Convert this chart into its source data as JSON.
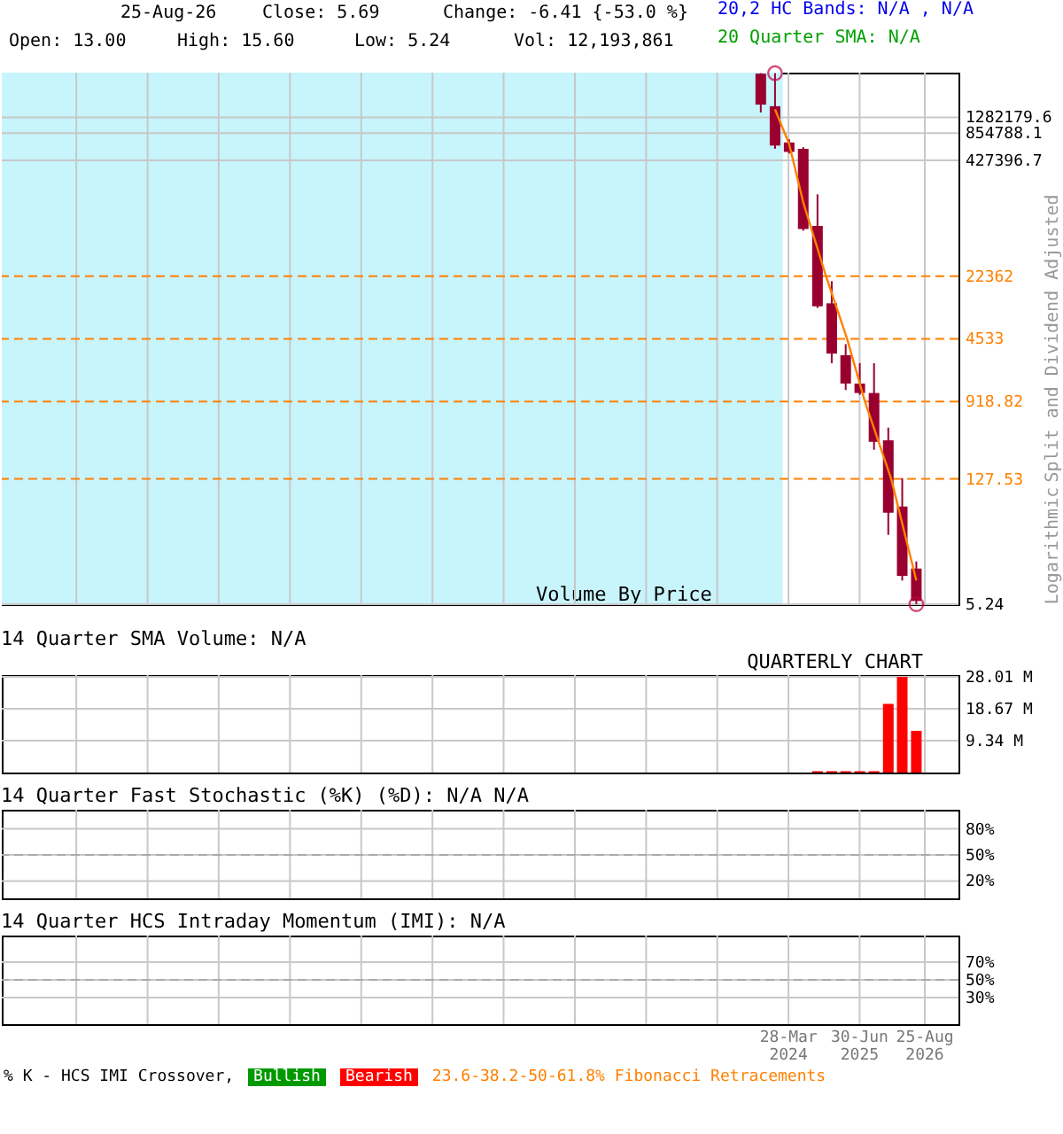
{
  "chart_data": [
    {
      "type": "candlestick",
      "annotations": [
        "25-Aug-26",
        "Close: 5.69",
        "Change: -6.41 {-53.0 %}",
        "20,2 HC Bands: N/A , N/A",
        "Open: 13.00",
        "High: 15.60",
        "Low: 5.24",
        "Vol: 12,193,861",
        "20 Quarter SMA: N/A",
        "Logarithmic"
      ],
      "ylabel": "Split and Dividend Adjusted",
      "color": "#99002f",
      "log": true,
      "grid": true,
      "tick_labels": "y",
      "x": [
        "2023-10-01",
        "2024-01-01",
        "2024-04-01",
        "2024-07-01",
        "2024-10-01",
        "2025-01-01",
        "2025-04-01",
        "2025-07-01",
        "2025-10-01",
        "2026-01-01",
        "2026-04-01",
        "2026-07-01"
      ],
      "ohlc": [
        [
          3900000,
          3950000,
          1450000,
          1770000
        ],
        [
          1700000,
          3950000,
          575000,
          624000
        ],
        [
          675000,
          732000,
          510000,
          531000
        ],
        [
          575000,
          599000,
          71300,
          74200
        ],
        [
          80400,
          180000,
          9960,
          10400
        ],
        [
          11200,
          19700,
          2440,
          3110
        ],
        [
          2990,
          3960,
          1230,
          1450
        ],
        [
          1450,
          2440,
          1090,
          1140
        ],
        [
          1140,
          2440,
          268,
          328
        ],
        [
          342,
          471,
          30.7,
          53.8
        ],
        [
          63.2,
          130,
          9.57,
          10.8
        ],
        [
          13.0,
          15.6,
          5.24,
          5.69
        ]
      ],
      "series": [
        {
          "type": "line",
          "color": "#ff8000",
          "x": [
            "2024-01-01",
            "2024-04-01",
            "2024-07-01",
            "2024-11-25",
            "2025-04-10",
            "2025-08-03",
            "2026-01-20",
            "2026-07-01"
          ],
          "values": [
            1570000,
            650000,
            147000,
            22362,
            4533,
            918.82,
            127.53,
            9.57
          ]
        },
        {
          "type": "scatter",
          "color": "#c00040",
          "marker": "circle",
          "x": [
            "2024-01-01",
            "2026-07-01"
          ],
          "values": [
            3950000,
            5.24
          ]
        }
      ],
      "ref_lines": [
        {
          "axis": "y",
          "value": 22362,
          "label": "22362",
          "color": "#ff8000",
          "line_style": "dashed"
        },
        {
          "axis": "y",
          "value": 4533,
          "label": "4533",
          "color": "#ff8000",
          "line_style": "dashed"
        },
        {
          "axis": "y",
          "value": 918.82,
          "label": "918.82",
          "color": "#ff8000",
          "line_style": "dashed"
        },
        {
          "axis": "y",
          "value": 127.53,
          "label": "127.53",
          "color": "#ff8000",
          "line_style": "dashed"
        }
      ],
      "bands": [
        {
          "axis": "x",
          "from": "2010-05-03",
          "to": "2024-02-20",
          "label": "Volume By Price",
          "color": "#c8f4fc"
        }
      ],
      "ylim": [
        5.24,
        4000000
      ],
      "yticks": [
        5.24,
        427396.7,
        854788.1,
        1282179.6
      ],
      "xlim": [
        "2010-05-03",
        "2027-03-30"
      ],
      "xticks": [
        {
          "value": "2011-08-27",
          "label": null
        },
        {
          "value": "2012-11-29",
          "label": null
        },
        {
          "value": "2014-03-03",
          "label": null
        },
        {
          "value": "2015-06-06",
          "label": null
        },
        {
          "value": "2016-09-08",
          "label": null
        },
        {
          "value": "2017-12-12",
          "label": null
        },
        {
          "value": "2019-03-16",
          "label": null
        },
        {
          "value": "2020-06-18",
          "label": null
        },
        {
          "value": "2021-09-21",
          "label": null
        },
        {
          "value": "2022-12-24",
          "label": null
        },
        {
          "value": "2024-03-28",
          "label": null
        },
        {
          "value": "2025-06-30",
          "label": null
        },
        {
          "value": "2026-08-25",
          "label": null
        }
      ]
    },
    {
      "type": "bar",
      "title": "14 Quarter SMA Volume: N/A",
      "annotations": [
        "QUARTERLY CHART"
      ],
      "color": "#ff0000",
      "grid": true,
      "tick_labels": "y",
      "x": [
        "2023-10-01",
        "2024-01-01",
        "2024-04-01",
        "2024-07-01",
        "2024-10-01",
        "2025-01-01",
        "2025-04-01",
        "2025-07-01",
        "2025-10-01",
        "2026-01-01",
        "2026-04-01",
        "2026-07-01"
      ],
      "values": [
        0,
        0,
        0,
        0,
        0.4,
        0.4,
        0.4,
        0.4,
        0.4,
        20.1,
        28.0,
        12.2
      ],
      "ylim": [
        0,
        28.5
      ],
      "yticks": [
        {
          "value": 9.34,
          "label": "9.34 M"
        },
        {
          "value": 18.67,
          "label": "18.67 M"
        },
        {
          "value": 28.01,
          "label": "28.01 M"
        }
      ],
      "xlim": [
        "2010-05-03",
        "2027-03-30"
      ],
      "xticks": [
        {
          "value": "2011-08-27",
          "label": null
        },
        {
          "value": "2012-11-29",
          "label": null
        },
        {
          "value": "2014-03-03",
          "label": null
        },
        {
          "value": "2015-06-06",
          "label": null
        },
        {
          "value": "2016-09-08",
          "label": null
        },
        {
          "value": "2017-12-12",
          "label": null
        },
        {
          "value": "2019-03-16",
          "label": null
        },
        {
          "value": "2020-06-18",
          "label": null
        },
        {
          "value": "2021-09-21",
          "label": null
        },
        {
          "value": "2022-12-24",
          "label": null
        },
        {
          "value": "2024-03-28",
          "label": null
        },
        {
          "value": "2025-06-30",
          "label": null
        },
        {
          "value": "2026-08-25",
          "label": null
        }
      ]
    },
    {
      "type": "line",
      "title": "14 Quarter Fast Stochastic (%K) (%D): N/A  N/A",
      "grid": true,
      "tick_labels": "y",
      "ref_lines": [
        {
          "axis": "y",
          "value": 50,
          "color": "#aaaaaa",
          "line_style": "dashed"
        }
      ],
      "ylim": [
        0,
        102
      ],
      "yticks": [
        {
          "value": 20,
          "label": "20%"
        },
        {
          "value": 50,
          "label": "50%"
        },
        {
          "value": 80,
          "label": "80%"
        }
      ],
      "xlim": [
        "2010-05-03",
        "2027-03-30"
      ],
      "xticks": [
        {
          "value": "2011-08-27",
          "label": null
        },
        {
          "value": "2012-11-29",
          "label": null
        },
        {
          "value": "2014-03-03",
          "label": null
        },
        {
          "value": "2015-06-06",
          "label": null
        },
        {
          "value": "2016-09-08",
          "label": null
        },
        {
          "value": "2017-12-12",
          "label": null
        },
        {
          "value": "2019-03-16",
          "label": null
        },
        {
          "value": "2020-06-18",
          "label": null
        },
        {
          "value": "2021-09-21",
          "label": null
        },
        {
          "value": "2022-12-24",
          "label": null
        },
        {
          "value": "2024-03-28",
          "label": null
        },
        {
          "value": "2025-06-30",
          "label": null
        },
        {
          "value": "2026-08-25",
          "label": null
        }
      ]
    },
    {
      "type": "line",
      "title": "14 Quarter HCS Intraday Momentum (IMI): N/A",
      "grid": true,
      "annotations": [
        "% K - HCS IMI Crossover,",
        "Bullish",
        "Bearish",
        "23.6-38.2-50-61.8% Fibonacci Retracements"
      ],
      "ref_lines": [
        {
          "axis": "y",
          "value": 50,
          "color": "#aaaaaa",
          "line_style": "dashed"
        }
      ],
      "ylim": [
        0,
        100
      ],
      "yticks": [
        {
          "value": 30,
          "label": "30%"
        },
        {
          "value": 50,
          "label": "50%"
        },
        {
          "value": 70,
          "label": "70%"
        }
      ],
      "xlim": [
        "2010-05-03",
        "2027-03-30"
      ],
      "xticks": [
        {
          "value": "2011-08-27",
          "label": null
        },
        {
          "value": "2012-11-29",
          "label": null
        },
        {
          "value": "2014-03-03",
          "label": null
        },
        {
          "value": "2015-06-06",
          "label": null
        },
        {
          "value": "2016-09-08",
          "label": null
        },
        {
          "value": "2017-12-12",
          "label": null
        },
        {
          "value": "2019-03-16",
          "label": null
        },
        {
          "value": "2020-06-18",
          "label": null
        },
        {
          "value": "2021-09-21",
          "label": null
        },
        {
          "value": "2022-12-24",
          "label": null
        },
        {
          "value": "2024-03-28",
          "label": "28-Mar 2024"
        },
        {
          "value": "2025-06-30",
          "label": "30-Jun 2025"
        },
        {
          "value": "2026-08-25",
          "label": "25-Aug 2026"
        }
      ]
    }
  ]
}
